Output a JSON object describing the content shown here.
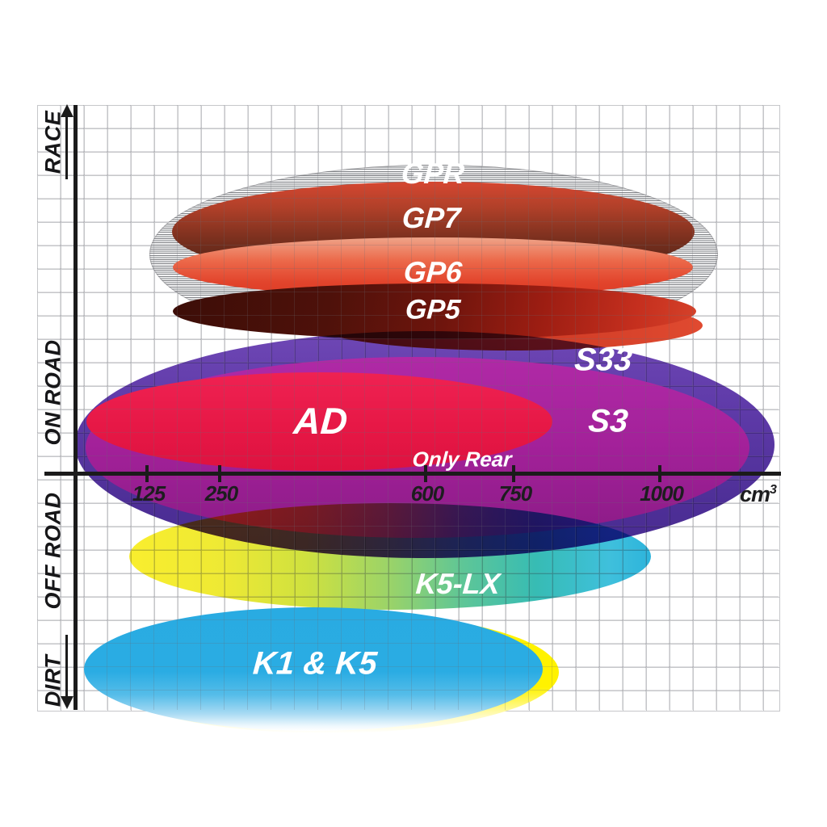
{
  "chart_data": {
    "type": "area",
    "variant": "overlapping-ellipse-range-chart",
    "title": "",
    "xlabel": "cm³",
    "x_axis": {
      "unit": "cm",
      "unit_exponent": "3",
      "tick_values": [
        125,
        250,
        600,
        750,
        1000
      ],
      "tick_labels": [
        "125",
        "250",
        "600",
        "750",
        "1000"
      ],
      "scale": "linear"
    },
    "y_zones": [
      "RACE",
      "ON ROAD",
      "OFF ROAD",
      "DIRT"
    ],
    "grid": true,
    "series": [
      {
        "name": "GPR",
        "zone": "RACE",
        "cc_range": [
          130,
          1110
        ],
        "color": "#b9babd",
        "fill_style": "gray-horizontal-hatch"
      },
      {
        "name": "GP7",
        "zone": "RACE",
        "cc_range": [
          170,
          1065
        ],
        "color": "#7e311f",
        "fill_style": "red-to-darkbrown-gradient"
      },
      {
        "name": "GP6",
        "zone": "RACE",
        "cc_range": [
          170,
          1065
        ],
        "color": "#e2442c",
        "fill_style": "salmon-to-vermilion-gradient"
      },
      {
        "name": "GP5",
        "zone": "RACE",
        "cc_range": [
          170,
          1070
        ],
        "color": "#6f150d",
        "fill_style": "darkmaroon-to-red-gradient"
      },
      {
        "name": "S33",
        "zone": "ON ROAD",
        "cc_range": [
          0,
          1200
        ],
        "color": "#5e3aa8",
        "fill_style": "violet"
      },
      {
        "name": "S3",
        "zone": "ON ROAD",
        "cc_range": [
          20,
          1160
        ],
        "color": "#a52099",
        "fill_style": "magenta"
      },
      {
        "name": "AD",
        "zone": "ON ROAD",
        "cc_range": [
          20,
          820
        ],
        "color": "#e61745",
        "fill_style": "crimson",
        "note": "Only Rear"
      },
      {
        "name": "K5-LX",
        "zone": "OFF ROAD",
        "cc_range": [
          95,
          990
        ],
        "color": "#2db5d2",
        "fill_style": "yellow-to-teal-gradient"
      },
      {
        "name": "K1 & K5",
        "zone": "DIRT",
        "cc_range": [
          20,
          805
        ],
        "color": "#29abe2",
        "fill_style": "cyan-with-yellow-rim"
      }
    ],
    "annotations": [
      {
        "text": "Only Rear",
        "attached_to": "AD"
      }
    ]
  },
  "colors": {
    "axis": "#1b1b1b",
    "grid_line": "#c6c7ca",
    "tick_text": "#1d1d1f",
    "label_text": "#ffffff",
    "k1k5_rim_yellow": "#fff200"
  }
}
